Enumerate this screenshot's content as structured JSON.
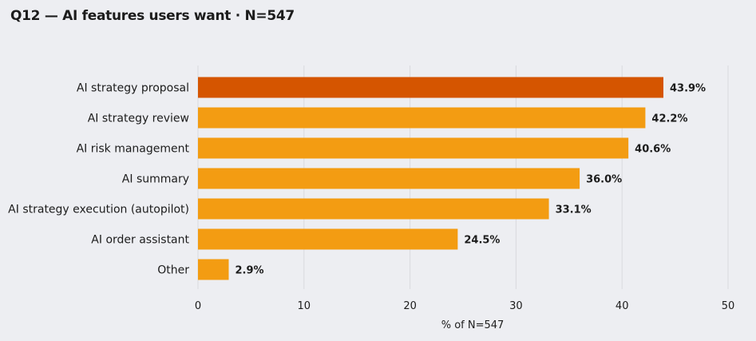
{
  "chart_data": {
    "type": "bar",
    "orientation": "horizontal",
    "title": "Q12 — AI features users want  ·  N=547",
    "xlabel": "% of N=547",
    "ylabel": "",
    "xlim": [
      0,
      50
    ],
    "xticks": [
      "0",
      "10",
      "20",
      "30",
      "40",
      "50"
    ],
    "grid": "vertical",
    "categories": [
      "AI strategy proposal",
      "AI strategy review",
      "AI risk management",
      "AI summary",
      "AI strategy execution (autopilot)",
      "AI order assistant",
      "Other"
    ],
    "values": [
      43.9,
      42.2,
      40.6,
      36.0,
      33.1,
      24.5,
      2.9
    ],
    "value_labels": [
      "43.9%",
      "42.2%",
      "40.6%",
      "36.0%",
      "33.1%",
      "24.5%",
      "2.9%"
    ],
    "highlight_index": 0,
    "colors": {
      "highlight": "#d55500",
      "bar": "#f39c12",
      "background": "#edeef2",
      "grid": "#d9d9de"
    }
  }
}
